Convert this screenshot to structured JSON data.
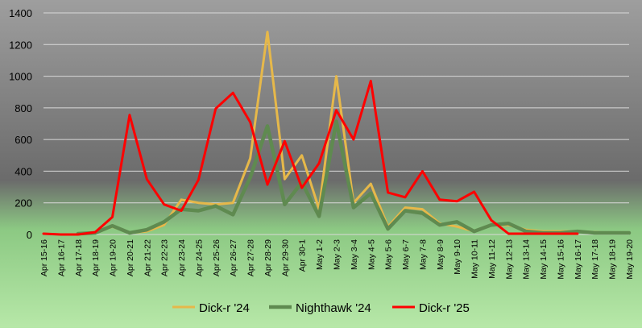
{
  "chart_data": {
    "type": "line",
    "title": "",
    "xlabel": "",
    "ylabel": "",
    "ylim": [
      0,
      1400
    ],
    "yticks": [
      0,
      200,
      400,
      600,
      800,
      1000,
      1200,
      1400
    ],
    "grid": "horizontal",
    "legend_position": "bottom",
    "categories": [
      "Apr 15-16",
      "Apr 16-17",
      "Apr 17-18",
      "Apr 18-19",
      "Apr 19-20",
      "Apr 20-21",
      "Apr 21-22",
      "Apr 22-23",
      "Apr 23-24",
      "Apr 24-25",
      "Apr 25-26",
      "Apr 26-27",
      "Apr 27-28",
      "Apr 28-29",
      "Apr 29-30",
      "Apr 30-1",
      "May 1-2",
      "May 2-3",
      "May 3-4",
      "May 4-5",
      "May 5-6",
      "May 6-7",
      "May 7-8",
      "May 8-9",
      "May 9-10",
      "May 10-11",
      "May 11-12",
      "May 12-13",
      "May 13-14",
      "May 14-15",
      "May 15-16",
      "May 16-17",
      "May 17-18",
      "May 18-19",
      "May 19-20"
    ],
    "series": [
      {
        "name": "Dick-r '24",
        "color": "#e6b84a",
        "values": [
          null,
          null,
          5,
          10,
          50,
          10,
          20,
          60,
          220,
          200,
          190,
          200,
          480,
          1280,
          350,
          500,
          160,
          1000,
          200,
          320,
          50,
          170,
          160,
          70,
          50,
          20,
          60,
          60,
          30,
          20,
          20,
          20,
          15,
          10,
          10
        ]
      },
      {
        "name": "Nighthawk '24",
        "color": "#5f8a50",
        "values": [
          null,
          null,
          5,
          10,
          55,
          10,
          30,
          80,
          160,
          150,
          180,
          125,
          360,
          685,
          190,
          330,
          115,
          715,
          170,
          260,
          35,
          150,
          135,
          60,
          80,
          20,
          60,
          70,
          20,
          10,
          10,
          20,
          10,
          10,
          10
        ]
      },
      {
        "name": "Dick-r '25",
        "color": "#ff0000",
        "values": [
          5,
          0,
          0,
          15,
          110,
          755,
          350,
          190,
          150,
          345,
          795,
          895,
          710,
          315,
          590,
          295,
          450,
          785,
          600,
          970,
          265,
          235,
          400,
          220,
          210,
          270,
          90,
          5,
          5,
          5,
          5,
          5,
          null,
          null,
          null
        ]
      }
    ]
  }
}
